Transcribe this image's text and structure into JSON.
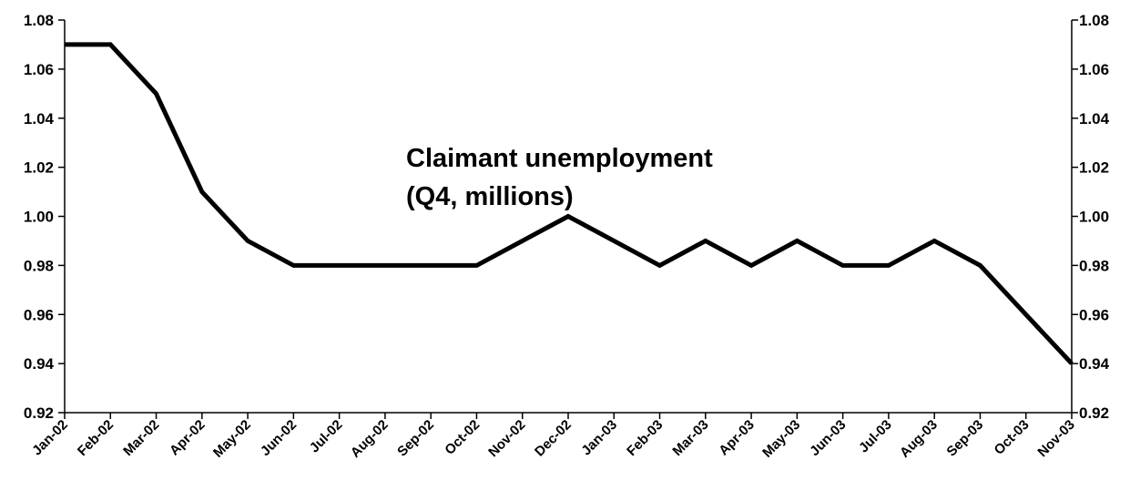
{
  "chart_data": {
    "type": "line",
    "annotation": [
      "Claimant unemployment",
      "(Q4, millions)"
    ],
    "categories": [
      "Jan-02",
      "Feb-02",
      "Mar-02",
      "Apr-02",
      "May-02",
      "Jun-02",
      "Jul-02",
      "Aug-02",
      "Sep-02",
      "Oct-02",
      "Nov-02",
      "Dec-02",
      "Jan-03",
      "Feb-03",
      "Mar-03",
      "Apr-03",
      "May-03",
      "Jun-03",
      "Jul-03",
      "Aug-03",
      "Sep-03",
      "Oct-03",
      "Nov-03"
    ],
    "series": [
      {
        "values": [
          1.07,
          1.07,
          1.05,
          1.01,
          0.99,
          0.98,
          0.98,
          0.98,
          0.98,
          0.98,
          0.99,
          1.0,
          0.99,
          0.98,
          0.99,
          0.98,
          0.99,
          0.98,
          0.98,
          0.99,
          0.98,
          0.96,
          0.94
        ]
      }
    ],
    "ylim": [
      0.92,
      1.08
    ],
    "yticks": [
      "0.92",
      "0.94",
      "0.96",
      "0.98",
      "1.00",
      "1.02",
      "1.04",
      "1.06",
      "1.08"
    ],
    "right_axis": true,
    "grid": false,
    "line_color": "#000000"
  }
}
